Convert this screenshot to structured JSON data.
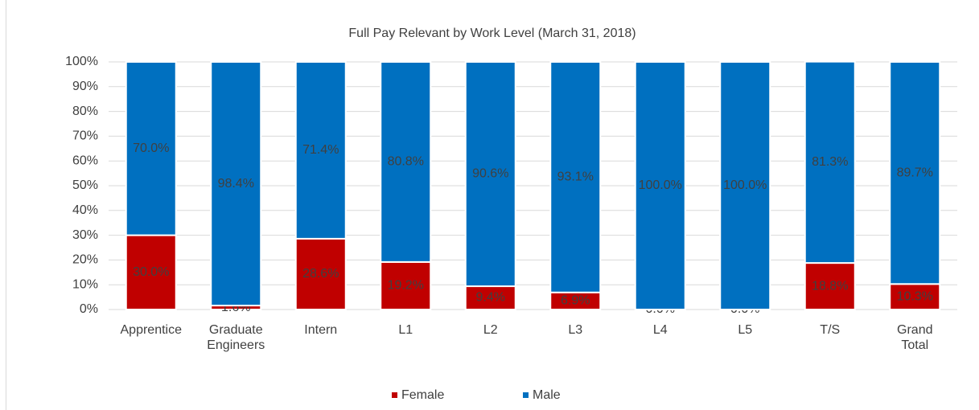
{
  "chart_data": {
    "type": "stacked_bar",
    "title": "Full Pay Relevant by Work Level (March 31, 2018)",
    "categories": [
      "Apprentice",
      "Graduate Engineers",
      "Intern",
      "L1",
      "L2",
      "L3",
      "L4",
      "L5",
      "T/S",
      "Grand Total"
    ],
    "series": [
      {
        "name": "Female",
        "color": "#c00000",
        "values": [
          30.0,
          1.6,
          28.6,
          19.2,
          9.4,
          6.9,
          0.0,
          0.0,
          18.8,
          10.3
        ],
        "value_labels": [
          "30.0%",
          "1.6%",
          "28.6%",
          "19.2%",
          "9.4%",
          "6.9%",
          "0.0%",
          "0.0%",
          "18.8%",
          "10.3%"
        ]
      },
      {
        "name": "Male",
        "color": "#0070c0",
        "values": [
          70.0,
          98.4,
          71.4,
          80.8,
          90.6,
          93.1,
          100.0,
          100.0,
          81.3,
          89.7
        ],
        "value_labels": [
          "70.0%",
          "98.4%",
          "71.4%",
          "80.8%",
          "90.6%",
          "93.1%",
          "100.0%",
          "100.0%",
          "81.3%",
          "89.7%"
        ]
      }
    ],
    "ylim": [
      0,
      100
    ],
    "yticks": [
      {
        "value": 0,
        "label": "0%"
      },
      {
        "value": 10,
        "label": "10%"
      },
      {
        "value": 20,
        "label": "20%"
      },
      {
        "value": 30,
        "label": "30%"
      },
      {
        "value": 40,
        "label": "40%"
      },
      {
        "value": 50,
        "label": "50%"
      },
      {
        "value": 60,
        "label": "60%"
      },
      {
        "value": 70,
        "label": "70%"
      },
      {
        "value": 80,
        "label": "80%"
      },
      {
        "value": 90,
        "label": "90%"
      },
      {
        "value": 100,
        "label": "100%"
      }
    ],
    "grid": true,
    "legend": "bottom"
  }
}
